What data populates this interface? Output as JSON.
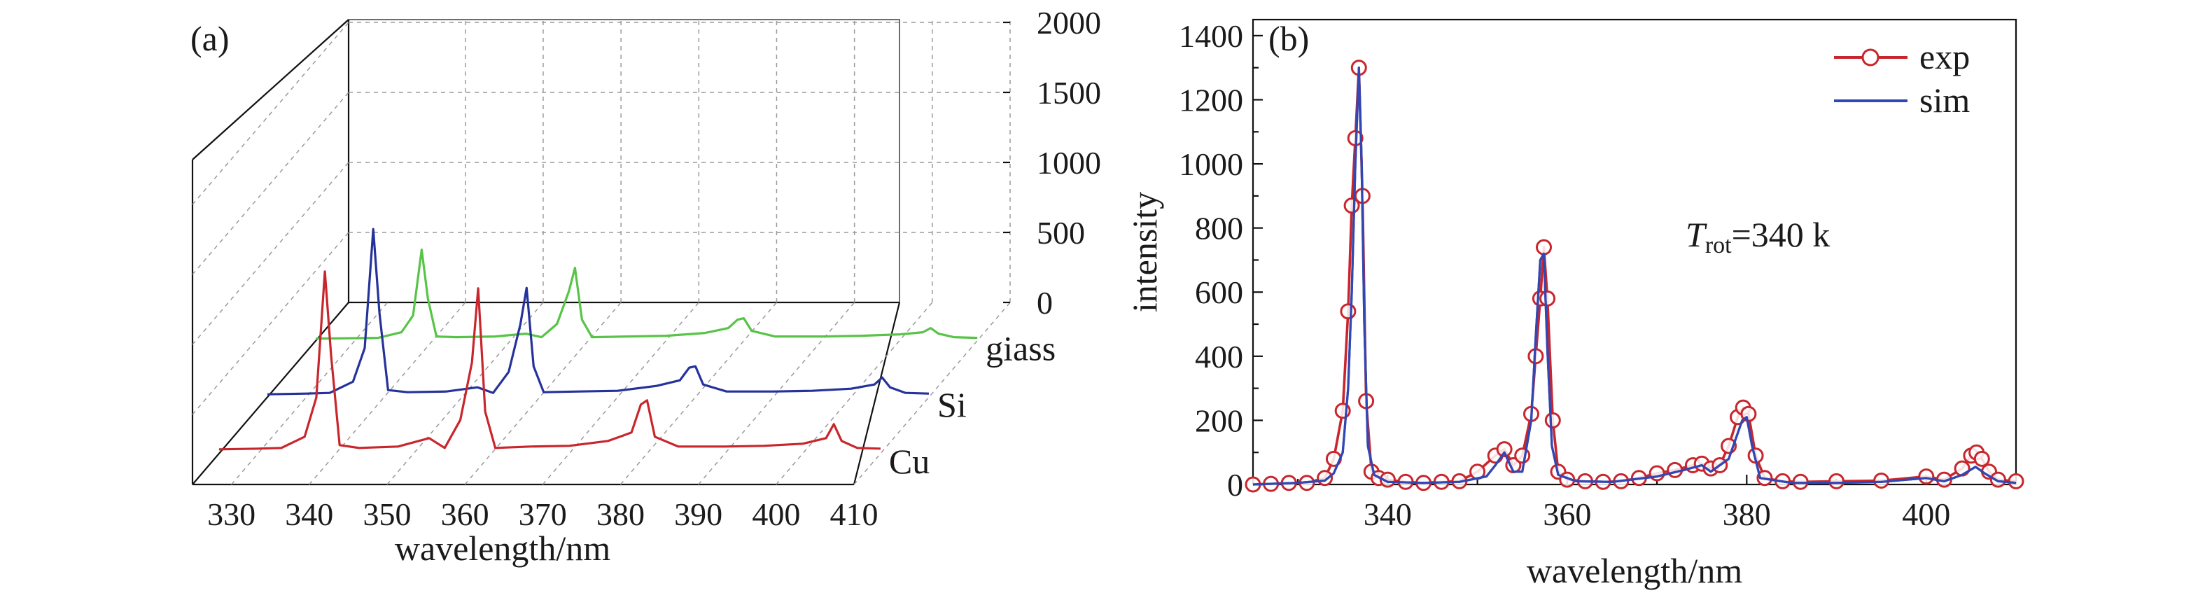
{
  "chart_data": [
    {
      "type": "line",
      "panel_label": "(a)",
      "xlabel": "wavelength/nm",
      "ylabel": "",
      "xlim": [
        325,
        410
      ],
      "ylim": [
        0,
        2000
      ],
      "x_ticks": [
        330,
        340,
        350,
        360,
        370,
        380,
        390,
        400,
        410
      ],
      "z_ticks": [
        0,
        500,
        1000,
        1500,
        2000
      ],
      "grid": true,
      "series": [
        {
          "name": "Cu",
          "color": "#c8262c",
          "points": [
            [
              325,
              30
            ],
            [
              330,
              35
            ],
            [
              333,
              40
            ],
            [
              336,
              120
            ],
            [
              337.5,
              400
            ],
            [
              338.6,
              1300
            ],
            [
              339.4,
              700
            ],
            [
              340.5,
              60
            ],
            [
              343,
              40
            ],
            [
              348,
              50
            ],
            [
              352,
              110
            ],
            [
              354,
              40
            ],
            [
              356,
              240
            ],
            [
              357.5,
              650
            ],
            [
              358.3,
              1180
            ],
            [
              359.2,
              300
            ],
            [
              360.5,
              40
            ],
            [
              365,
              50
            ],
            [
              370,
              55
            ],
            [
              375,
              90
            ],
            [
              378,
              150
            ],
            [
              379.2,
              350
            ],
            [
              380,
              380
            ],
            [
              381,
              120
            ],
            [
              384,
              50
            ],
            [
              390,
              50
            ],
            [
              395,
              55
            ],
            [
              400,
              70
            ],
            [
              403,
              110
            ],
            [
              404,
              210
            ],
            [
              405,
              90
            ],
            [
              407,
              40
            ],
            [
              410,
              35
            ]
          ]
        },
        {
          "name": "Si",
          "color": "#25329a",
          "points": [
            [
              325,
              20
            ],
            [
              330,
              25
            ],
            [
              333,
              30
            ],
            [
              336,
              110
            ],
            [
              337.5,
              350
            ],
            [
              338.6,
              1200
            ],
            [
              339.4,
              600
            ],
            [
              340.5,
              50
            ],
            [
              343,
              35
            ],
            [
              348,
              40
            ],
            [
              352,
              70
            ],
            [
              354,
              30
            ],
            [
              356,
              180
            ],
            [
              357.5,
              520
            ],
            [
              358.3,
              780
            ],
            [
              359.2,
              220
            ],
            [
              360.5,
              35
            ],
            [
              365,
              40
            ],
            [
              370,
              45
            ],
            [
              375,
              80
            ],
            [
              378,
              120
            ],
            [
              379.2,
              210
            ],
            [
              380,
              220
            ],
            [
              381,
              90
            ],
            [
              384,
              40
            ],
            [
              390,
              40
            ],
            [
              395,
              45
            ],
            [
              400,
              60
            ],
            [
              403,
              90
            ],
            [
              404,
              140
            ],
            [
              405,
              70
            ],
            [
              407,
              30
            ],
            [
              410,
              25
            ]
          ]
        },
        {
          "name": "giass",
          "color": "#57c447",
          "points": [
            [
              325,
              15
            ],
            [
              330,
              18
            ],
            [
              333,
              20
            ],
            [
              336,
              60
            ],
            [
              337.5,
              180
            ],
            [
              338.6,
              650
            ],
            [
              339.4,
              300
            ],
            [
              340.5,
              30
            ],
            [
              343,
              25
            ],
            [
              348,
              30
            ],
            [
              352,
              50
            ],
            [
              354,
              25
            ],
            [
              356,
              120
            ],
            [
              357.5,
              350
            ],
            [
              358.3,
              520
            ],
            [
              359.2,
              150
            ],
            [
              360.5,
              25
            ],
            [
              365,
              30
            ],
            [
              370,
              35
            ],
            [
              375,
              55
            ],
            [
              378,
              90
            ],
            [
              379.2,
              150
            ],
            [
              380,
              160
            ],
            [
              381,
              70
            ],
            [
              384,
              30
            ],
            [
              390,
              30
            ],
            [
              395,
              35
            ],
            [
              400,
              45
            ],
            [
              403,
              60
            ],
            [
              404,
              90
            ],
            [
              405,
              50
            ],
            [
              407,
              25
            ],
            [
              410,
              20
            ]
          ]
        }
      ]
    },
    {
      "type": "line",
      "panel_label": "(b)",
      "xlabel": "wavelength/nm",
      "ylabel": "intensity",
      "xlim": [
        325,
        410
      ],
      "ylim": [
        0,
        1450
      ],
      "x_ticks": [
        340,
        360,
        380,
        400
      ],
      "y_ticks": [
        0,
        200,
        400,
        600,
        800,
        1000,
        1200,
        1400
      ],
      "annotation": {
        "symbol": "T",
        "subscript": "rot",
        "text": "=340 k"
      },
      "legend": "top-right",
      "grid": false,
      "series": [
        {
          "name": "exp",
          "color": "#c8262c",
          "marker": "open-circle",
          "points": [
            [
              325,
              0
            ],
            [
              327,
              2
            ],
            [
              329,
              5
            ],
            [
              331,
              5
            ],
            [
              333,
              20
            ],
            [
              334,
              80
            ],
            [
              335,
              230
            ],
            [
              335.6,
              540
            ],
            [
              336,
              870
            ],
            [
              336.4,
              1080
            ],
            [
              336.8,
              1300
            ],
            [
              337.2,
              900
            ],
            [
              337.6,
              260
            ],
            [
              338.2,
              40
            ],
            [
              339,
              20
            ],
            [
              340,
              15
            ],
            [
              342,
              8
            ],
            [
              344,
              5
            ],
            [
              346,
              8
            ],
            [
              348,
              10
            ],
            [
              350,
              40
            ],
            [
              352,
              90
            ],
            [
              353,
              110
            ],
            [
              354,
              60
            ],
            [
              355,
              90
            ],
            [
              356,
              220
            ],
            [
              356.5,
              400
            ],
            [
              357,
              580
            ],
            [
              357.4,
              740
            ],
            [
              357.8,
              580
            ],
            [
              358.4,
              200
            ],
            [
              359,
              40
            ],
            [
              360,
              15
            ],
            [
              362,
              10
            ],
            [
              364,
              8
            ],
            [
              366,
              10
            ],
            [
              368,
              20
            ],
            [
              370,
              35
            ],
            [
              372,
              45
            ],
            [
              374,
              60
            ],
            [
              375,
              65
            ],
            [
              376,
              50
            ],
            [
              377,
              60
            ],
            [
              378,
              120
            ],
            [
              379,
              210
            ],
            [
              379.6,
              240
            ],
            [
              380.2,
              220
            ],
            [
              381,
              90
            ],
            [
              382,
              20
            ],
            [
              384,
              10
            ],
            [
              386,
              8
            ],
            [
              390,
              10
            ],
            [
              395,
              12
            ],
            [
              400,
              25
            ],
            [
              402,
              15
            ],
            [
              404,
              50
            ],
            [
              405,
              90
            ],
            [
              405.6,
              100
            ],
            [
              406.2,
              80
            ],
            [
              407,
              40
            ],
            [
              408,
              15
            ],
            [
              410,
              10
            ]
          ]
        },
        {
          "name": "sim",
          "color": "#3147b3",
          "points": [
            [
              325,
              0
            ],
            [
              330,
              5
            ],
            [
              333,
              12
            ],
            [
              334,
              35
            ],
            [
              335,
              100
            ],
            [
              335.6,
              300
            ],
            [
              336,
              600
            ],
            [
              336.4,
              1000
            ],
            [
              336.8,
              1300
            ],
            [
              337.1,
              1000
            ],
            [
              337.4,
              500
            ],
            [
              337.8,
              120
            ],
            [
              338.5,
              30
            ],
            [
              340,
              8
            ],
            [
              344,
              5
            ],
            [
              348,
              8
            ],
            [
              351,
              25
            ],
            [
              352,
              60
            ],
            [
              353,
              100
            ],
            [
              354,
              40
            ],
            [
              355,
              40
            ],
            [
              356,
              200
            ],
            [
              356.5,
              460
            ],
            [
              357,
              700
            ],
            [
              357.4,
              720
            ],
            [
              357.8,
              420
            ],
            [
              358.3,
              120
            ],
            [
              359,
              30
            ],
            [
              361,
              10
            ],
            [
              365,
              8
            ],
            [
              370,
              25
            ],
            [
              373,
              45
            ],
            [
              375,
              60
            ],
            [
              376,
              40
            ],
            [
              378,
              80
            ],
            [
              379.5,
              200
            ],
            [
              380,
              210
            ],
            [
              380.6,
              120
            ],
            [
              381.5,
              20
            ],
            [
              385,
              5
            ],
            [
              390,
              5
            ],
            [
              395,
              8
            ],
            [
              400,
              20
            ],
            [
              402,
              10
            ],
            [
              404,
              30
            ],
            [
              405.5,
              55
            ],
            [
              406.5,
              35
            ],
            [
              408,
              10
            ],
            [
              410,
              5
            ]
          ]
        }
      ]
    }
  ]
}
